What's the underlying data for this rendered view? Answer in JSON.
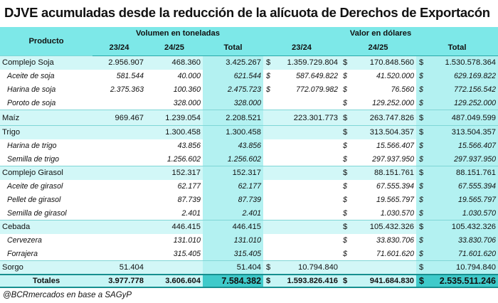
{
  "title": "DJVE acumuladas desde la reducción de la alícuota de Derechos de Exportacón",
  "table": {
    "header": {
      "product": "Producto",
      "volume": "Volumen en toneladas",
      "value": "Valor en dólares",
      "columns": [
        "23/24",
        "24/25",
        "Total",
        "23/24",
        "24/25",
        "Total"
      ]
    },
    "groups": [
      {
        "product": "Complejo Soja",
        "volume": [
          "2.956.907",
          "468.360",
          "3.425.267"
        ],
        "value": [
          {
            "currency": "$",
            "amount": "1.359.729.804"
          },
          {
            "currency": "$",
            "amount": "170.848.560"
          },
          {
            "currency": "$",
            "amount": "1.530.578.364"
          }
        ],
        "items": [
          {
            "product": "Aceite de soja",
            "volume": [
              "581.544",
              "40.000",
              "621.544"
            ],
            "value": [
              {
                "currency": "$",
                "amount": "587.649.822"
              },
              {
                "currency": "$",
                "amount": "41.520.000"
              },
              {
                "currency": "$",
                "amount": "629.169.822"
              }
            ]
          },
          {
            "product": "Harina de soja",
            "volume": [
              "2.375.363",
              "100.360",
              "2.475.723"
            ],
            "value": [
              {
                "currency": "$",
                "amount": "772.079.982"
              },
              {
                "currency": "$",
                "amount": "76.560"
              },
              {
                "currency": "$",
                "amount": "772.156.542"
              }
            ]
          },
          {
            "product": "Poroto de soja",
            "volume": [
              null,
              "328.000",
              "328.000"
            ],
            "value": [
              null,
              {
                "currency": "$",
                "amount": "129.252.000"
              },
              {
                "currency": "$",
                "amount": "129.252.000"
              }
            ]
          }
        ]
      },
      {
        "product": "Maíz",
        "volume": [
          "969.467",
          "1.239.054",
          "2.208.521"
        ],
        "value": [
          {
            "amount": "223.301.773"
          },
          {
            "currency": "$",
            "amount": "263.747.826"
          },
          {
            "currency": "$",
            "amount": "487.049.599"
          }
        ],
        "items": []
      },
      {
        "product": "Trigo",
        "volume": [
          null,
          "1.300.458",
          "1.300.458"
        ],
        "value": [
          null,
          {
            "currency": "$",
            "amount": "313.504.357"
          },
          {
            "currency": "$",
            "amount": "313.504.357"
          }
        ],
        "items": [
          {
            "product": "Harina de trigo",
            "volume": [
              null,
              "43.856",
              "43.856"
            ],
            "value": [
              null,
              {
                "currency": "$",
                "amount": "15.566.407"
              },
              {
                "currency": "$",
                "amount": "15.566.407"
              }
            ]
          },
          {
            "product": "Semilla de trigo",
            "volume": [
              null,
              "1.256.602",
              "1.256.602"
            ],
            "value": [
              null,
              {
                "currency": "$",
                "amount": "297.937.950"
              },
              {
                "currency": "$",
                "amount": "297.937.950"
              }
            ]
          }
        ]
      },
      {
        "product": "Complejo Girasol",
        "volume": [
          null,
          "152.317",
          "152.317"
        ],
        "value": [
          null,
          {
            "currency": "$",
            "amount": "88.151.761"
          },
          {
            "currency": "$",
            "amount": "88.151.761"
          }
        ],
        "items": [
          {
            "product": "Aceite de girasol",
            "volume": [
              null,
              "62.177",
              "62.177"
            ],
            "value": [
              null,
              {
                "currency": "$",
                "amount": "67.555.394"
              },
              {
                "currency": "$",
                "amount": "67.555.394"
              }
            ]
          },
          {
            "product": "Pellet de girasol",
            "volume": [
              null,
              "87.739",
              "87.739"
            ],
            "value": [
              null,
              {
                "currency": "$",
                "amount": "19.565.797"
              },
              {
                "currency": "$",
                "amount": "19.565.797"
              }
            ]
          },
          {
            "product": "Semilla de girasol",
            "volume": [
              null,
              "2.401",
              "2.401"
            ],
            "value": [
              null,
              {
                "currency": "$",
                "amount": "1.030.570"
              },
              {
                "currency": "$",
                "amount": "1.030.570"
              }
            ]
          }
        ]
      },
      {
        "product": "Cebada",
        "volume": [
          null,
          "446.415",
          "446.415"
        ],
        "value": [
          null,
          {
            "currency": "$",
            "amount": "105.432.326"
          },
          {
            "currency": "$",
            "amount": "105.432.326"
          }
        ],
        "items": [
          {
            "product": "Cervezera",
            "volume": [
              null,
              "131.010",
              "131.010"
            ],
            "value": [
              null,
              {
                "currency": "$",
                "amount": "33.830.706"
              },
              {
                "currency": "$",
                "amount": "33.830.706"
              }
            ]
          },
          {
            "product": "Forrajera",
            "volume": [
              null,
              "315.405",
              "315.405"
            ],
            "value": [
              null,
              {
                "currency": "$",
                "amount": "71.601.620"
              },
              {
                "currency": "$",
                "amount": "71.601.620"
              }
            ]
          }
        ]
      },
      {
        "product": "Sorgo",
        "volume": [
          "51.404",
          null,
          "51.404"
        ],
        "value": [
          {
            "currency": "$",
            "amount": "10.794.840"
          },
          null,
          {
            "currency": "$",
            "amount": "10.794.840"
          }
        ],
        "items": []
      }
    ],
    "totals": {
      "product": "Totales",
      "volume": [
        "3.977.778",
        "3.606.604",
        "7.584.382"
      ],
      "value": [
        {
          "currency": "$",
          "amount": "1.593.826.416"
        },
        {
          "currency": "$",
          "amount": "941.684.830"
        },
        {
          "currency": "$",
          "amount": "2.535.511.246"
        }
      ]
    }
  },
  "footer": "@BCRmercados en base a SAGyP"
}
